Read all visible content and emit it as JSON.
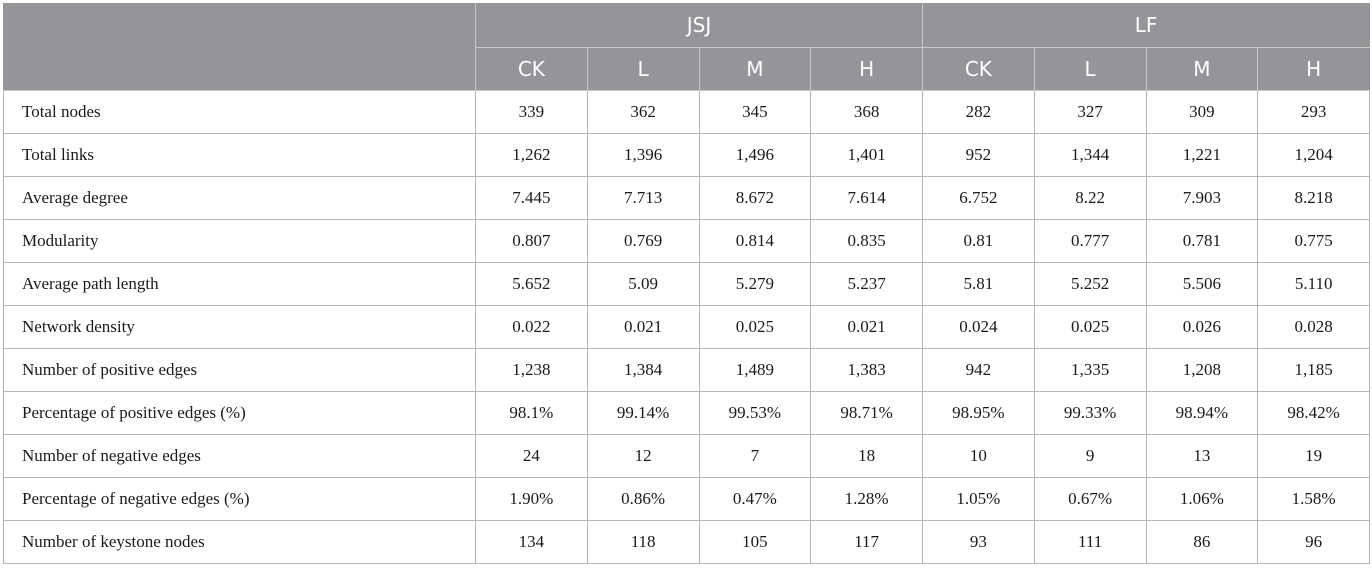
{
  "header": {
    "groups": [
      "JSJ",
      "LF"
    ],
    "subheaders": [
      "CK",
      "L",
      "M",
      "H",
      "CK",
      "L",
      "M",
      "H"
    ]
  },
  "rows": [
    {
      "label": "Total nodes",
      "values": [
        "339",
        "362",
        "345",
        "368",
        "282",
        "327",
        "309",
        "293"
      ]
    },
    {
      "label": "Total links",
      "values": [
        "1,262",
        "1,396",
        "1,496",
        "1,401",
        "952",
        "1,344",
        "1,221",
        "1,204"
      ]
    },
    {
      "label": "Average degree",
      "values": [
        "7.445",
        "7.713",
        "8.672",
        "7.614",
        "6.752",
        "8.22",
        "7.903",
        "8.218"
      ]
    },
    {
      "label": "Modularity",
      "values": [
        "0.807",
        "0.769",
        "0.814",
        "0.835",
        "0.81",
        "0.777",
        "0.781",
        "0.775"
      ]
    },
    {
      "label": "Average path length",
      "values": [
        "5.652",
        "5.09",
        "5.279",
        "5.237",
        "5.81",
        "5.252",
        "5.506",
        "5.110"
      ]
    },
    {
      "label": "Network density",
      "values": [
        "0.022",
        "0.021",
        "0.025",
        "0.021",
        "0.024",
        "0.025",
        "0.026",
        "0.028"
      ]
    },
    {
      "label": "Number of positive edges",
      "values": [
        "1,238",
        "1,384",
        "1,489",
        "1,383",
        "942",
        "1,335",
        "1,208",
        "1,185"
      ]
    },
    {
      "label": "Percentage of positive edges (%)",
      "values": [
        "98.1%",
        "99.14%",
        "99.53%",
        "98.71%",
        "98.95%",
        "99.33%",
        "98.94%",
        "98.42%"
      ]
    },
    {
      "label": "Number of negative edges",
      "values": [
        "24",
        "12",
        "7",
        "18",
        "10",
        "9",
        "13",
        "19"
      ]
    },
    {
      "label": "Percentage of negative edges (%)",
      "values": [
        "1.90%",
        "0.86%",
        "0.47%",
        "1.28%",
        "1.05%",
        "0.67%",
        "1.06%",
        "1.58%"
      ]
    },
    {
      "label": "Number of keystone nodes",
      "values": [
        "134",
        "118",
        "105",
        "117",
        "93",
        "111",
        "86",
        "96"
      ]
    }
  ]
}
